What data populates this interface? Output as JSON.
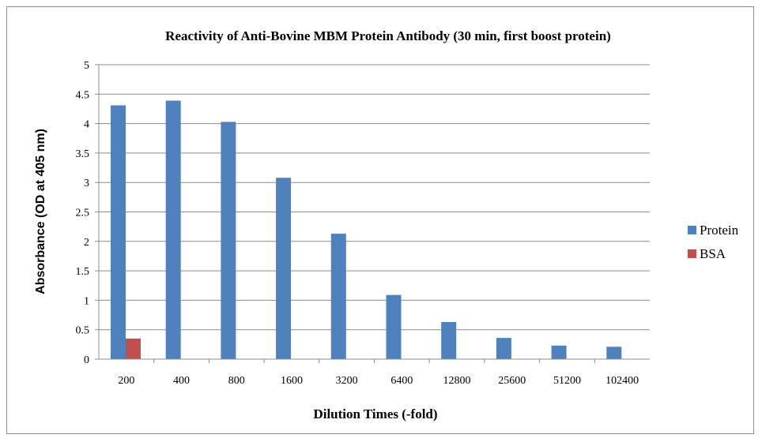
{
  "chart_data": {
    "type": "bar",
    "title": "Reactivity of Anti-Bovine MBM Protein Antibody (30 min, first boost protein)",
    "xlabel": "Dilution Times (-fold)",
    "ylabel": "Absorbance (OD at 405 nm)",
    "ylim": [
      0,
      5
    ],
    "yticks": [
      "0",
      "0.5",
      "1",
      "1.5",
      "2",
      "2.5",
      "3",
      "3.5",
      "4",
      "4.5",
      "5"
    ],
    "grid": true,
    "legend_position": "right",
    "categories": [
      "200",
      "400",
      "800",
      "1600",
      "3200",
      "6400",
      "12800",
      "25600",
      "51200",
      "102400"
    ],
    "series": [
      {
        "name": "Protein",
        "color": "#4f81bd",
        "values": [
          4.31,
          4.39,
          4.03,
          3.08,
          2.13,
          1.09,
          0.63,
          0.36,
          0.23,
          0.21
        ]
      },
      {
        "name": "BSA",
        "color": "#c0504d",
        "values": [
          0.35,
          0,
          0,
          0,
          0,
          0,
          0,
          0,
          0,
          0
        ]
      }
    ]
  }
}
